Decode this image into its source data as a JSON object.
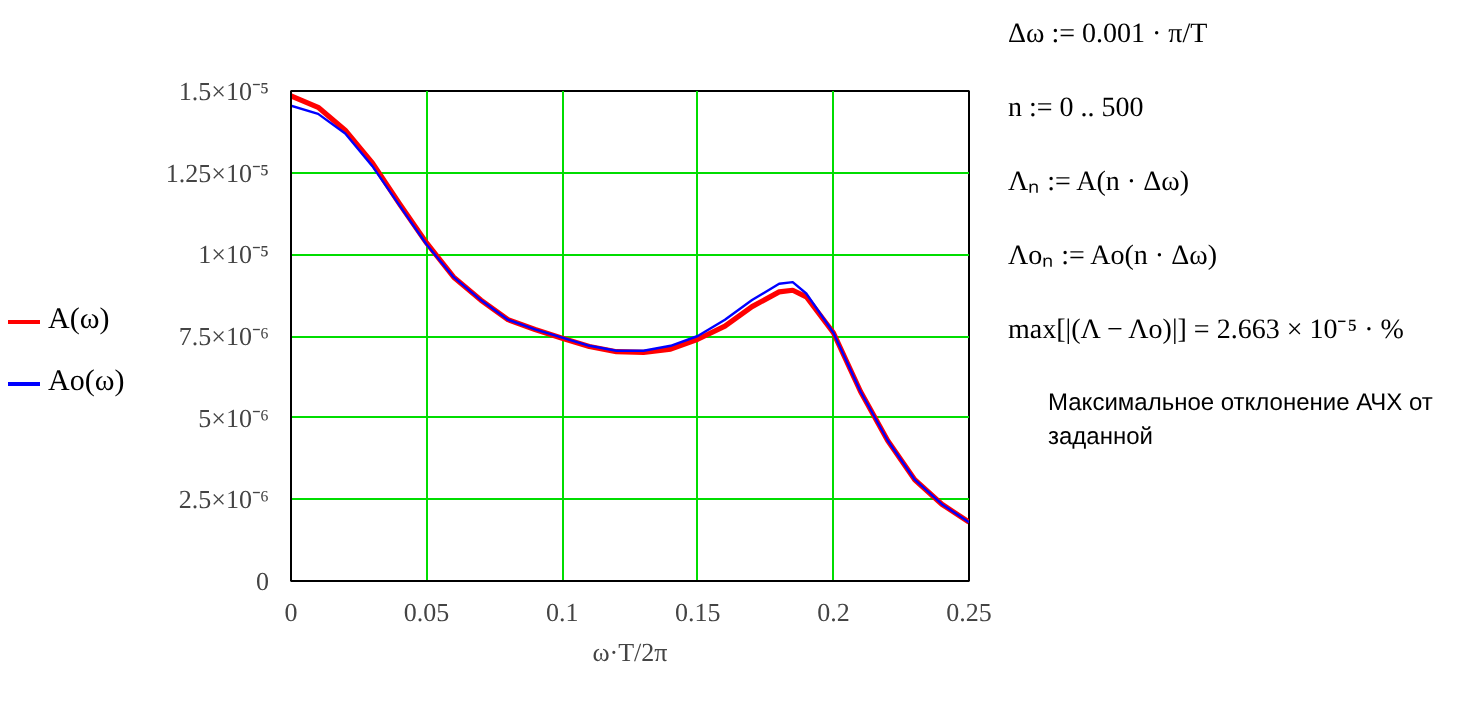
{
  "chart_data": {
    "type": "line",
    "xlabel": "ω·T/2π",
    "x": [
      0,
      0.01,
      0.02,
      0.03,
      0.04,
      0.05,
      0.06,
      0.07,
      0.08,
      0.09,
      0.1,
      0.11,
      0.12,
      0.13,
      0.14,
      0.15,
      0.16,
      0.17,
      0.18,
      0.185,
      0.19,
      0.2,
      0.21,
      0.22,
      0.23,
      0.24,
      0.25
    ],
    "series": [
      {
        "name": "A(ω)",
        "color": "#ff0000",
        "values": [
          1.485e-05,
          1.45e-05,
          1.38e-05,
          1.28e-05,
          1.155e-05,
          1.035e-05,
          9.3e-06,
          8.6e-06,
          8e-06,
          7.7e-06,
          7.43e-06,
          7.18e-06,
          7.02e-06,
          7e-06,
          7.1e-06,
          7.4e-06,
          7.8e-06,
          8.4e-06,
          8.85e-06,
          8.9e-06,
          8.7e-06,
          7.6e-06,
          5.8e-06,
          4.3e-06,
          3.1e-06,
          2.35e-06,
          1.8e-06
        ]
      },
      {
        "name": "Ao(ω)",
        "color": "#0000ff",
        "values": [
          1.455e-05,
          1.43e-05,
          1.37e-05,
          1.27e-05,
          1.15e-05,
          1.03e-05,
          9.3e-06,
          8.6e-06,
          8e-06,
          7.7e-06,
          7.45e-06,
          7.2e-06,
          7.05e-06,
          7.05e-06,
          7.2e-06,
          7.5e-06,
          8e-06,
          8.6e-06,
          9.1e-06,
          9.15e-06,
          8.8e-06,
          7.6e-06,
          5.8e-06,
          4.3e-06,
          3.1e-06,
          2.35e-06,
          1.8e-06
        ]
      }
    ],
    "xlim": [
      0,
      0.25
    ],
    "xticks": [
      0,
      0.05,
      0.1,
      0.15,
      0.2,
      0.25
    ],
    "ylim": [
      0,
      1.5e-05
    ],
    "yticks": [
      0,
      {
        "value": 2.5e-06,
        "label": "2.5×10⁻⁶"
      },
      {
        "value": 5e-06,
        "label": "5×10⁻⁶"
      },
      {
        "value": 7.5e-06,
        "label": "7.5×10⁻⁶"
      },
      {
        "value": 1e-05,
        "label": "1×10⁻⁵"
      },
      {
        "value": 1.25e-05,
        "label": "1.25×10⁻⁵"
      },
      {
        "value": 1.5e-05,
        "label": "1.5×10⁻⁵"
      }
    ],
    "grid": true,
    "legend": "left",
    "marker": "none",
    "line_style": "solid",
    "annotations": [
      "Δω := 0.001 · π/T",
      "n := 0 .. 500",
      "Λₙ := A(n · Δω)",
      "Λoₙ := Ao(n · Δω)",
      "max[|(Λ − Λo)|] = 2.663 × 10⁻⁵ · %",
      "Максимальное отклонение АЧХ от заданной"
    ]
  }
}
